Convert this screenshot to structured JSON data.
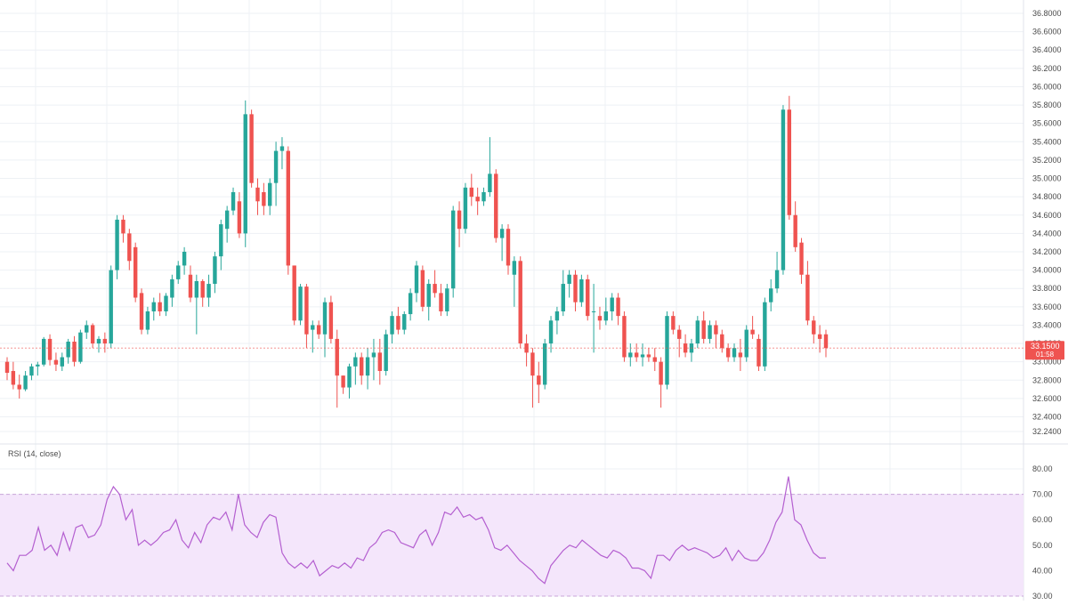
{
  "colors": {
    "up": "#26a69a",
    "down": "#ef5350",
    "grid": "#eef1f5",
    "axis_text": "#4a4a4a",
    "rsi_line": "#b45fd0",
    "rsi_band_fill": "#f4e6fb",
    "rsi_band_border": "#c9a6d9",
    "price_marker": "#ef5350"
  },
  "price_axis": {
    "ticks": [
      "36.8000",
      "36.6000",
      "36.4000",
      "36.2000",
      "36.0000",
      "35.8000",
      "35.6000",
      "35.4000",
      "35.2000",
      "35.0000",
      "34.8000",
      "34.6000",
      "34.4000",
      "34.2000",
      "34.0000",
      "33.8000",
      "33.6000",
      "33.4000",
      "33.2000",
      "33.0000",
      "32.8000",
      "32.6000",
      "32.4000",
      "32.2400"
    ]
  },
  "current_price": {
    "value": 33.15,
    "label": "33.1500",
    "countdown": "01:58"
  },
  "rsi": {
    "title": "RSI (14, close)",
    "ticks": [
      "80.00",
      "70.00",
      "60.00",
      "50.00",
      "40.00",
      "30.00"
    ],
    "overbought": 70,
    "oversold": 30
  },
  "chart_data": [
    {
      "type": "candlestick",
      "title": "",
      "ylim": [
        32.24,
        36.8
      ],
      "candles": [
        [
          33.0,
          33.05,
          32.8,
          32.88
        ],
        [
          32.9,
          33.0,
          32.7,
          32.75
        ],
        [
          32.75,
          32.86,
          32.6,
          32.7
        ],
        [
          32.7,
          32.9,
          32.68,
          32.85
        ],
        [
          32.85,
          32.98,
          32.8,
          32.95
        ],
        [
          32.95,
          33.0,
          32.85,
          32.97
        ],
        [
          32.97,
          33.27,
          32.95,
          33.25
        ],
        [
          33.25,
          33.3,
          32.96,
          33.02
        ],
        [
          33.02,
          33.1,
          32.9,
          32.97
        ],
        [
          32.95,
          33.1,
          32.9,
          33.05
        ],
        [
          33.05,
          33.25,
          32.98,
          33.22
        ],
        [
          33.22,
          33.28,
          32.95,
          33.0
        ],
        [
          33.0,
          33.35,
          32.98,
          33.32
        ],
        [
          33.32,
          33.45,
          33.25,
          33.4
        ],
        [
          33.4,
          33.42,
          33.15,
          33.2
        ],
        [
          33.2,
          33.28,
          33.1,
          33.25
        ],
        [
          33.25,
          33.32,
          33.1,
          33.2
        ],
        [
          33.2,
          34.05,
          33.15,
          34.0
        ],
        [
          34.0,
          34.6,
          33.9,
          34.55
        ],
        [
          34.55,
          34.6,
          34.3,
          34.4
        ],
        [
          34.4,
          34.45,
          34.0,
          34.1
        ],
        [
          34.25,
          34.3,
          33.65,
          33.7
        ],
        [
          33.75,
          33.8,
          33.3,
          33.35
        ],
        [
          33.35,
          33.6,
          33.3,
          33.55
        ],
        [
          33.55,
          33.7,
          33.45,
          33.65
        ],
        [
          33.65,
          33.75,
          33.5,
          33.55
        ],
        [
          33.55,
          33.75,
          33.5,
          33.72
        ],
        [
          33.7,
          33.95,
          33.6,
          33.9
        ],
        [
          33.9,
          34.1,
          33.85,
          34.05
        ],
        [
          34.05,
          34.25,
          33.95,
          34.2
        ],
        [
          33.95,
          34.05,
          33.65,
          33.7
        ],
        [
          33.7,
          33.95,
          33.3,
          33.88
        ],
        [
          33.88,
          33.9,
          33.6,
          33.7
        ],
        [
          33.7,
          33.95,
          33.6,
          33.85
        ],
        [
          33.85,
          34.2,
          33.75,
          34.15
        ],
        [
          34.15,
          34.55,
          34.0,
          34.5
        ],
        [
          34.45,
          34.7,
          34.3,
          34.65
        ],
        [
          34.65,
          34.9,
          34.6,
          34.85
        ],
        [
          34.75,
          34.85,
          34.35,
          34.4
        ],
        [
          34.4,
          35.85,
          34.25,
          35.7
        ],
        [
          35.7,
          35.75,
          34.9,
          34.95
        ],
        [
          34.9,
          35.0,
          34.6,
          34.75
        ],
        [
          34.85,
          34.95,
          34.6,
          34.7
        ],
        [
          34.7,
          35.0,
          34.6,
          34.95
        ],
        [
          34.95,
          35.4,
          34.7,
          35.3
        ],
        [
          35.3,
          35.45,
          35.1,
          35.35
        ],
        [
          35.3,
          35.35,
          33.95,
          34.05
        ],
        [
          34.05,
          34.05,
          33.4,
          33.45
        ],
        [
          33.45,
          33.85,
          33.4,
          33.82
        ],
        [
          33.82,
          33.85,
          33.15,
          33.3
        ],
        [
          33.35,
          33.45,
          33.1,
          33.4
        ],
        [
          33.4,
          33.45,
          33.25,
          33.3
        ],
        [
          33.3,
          33.7,
          33.05,
          33.65
        ],
        [
          33.65,
          33.72,
          33.2,
          33.25
        ],
        [
          33.25,
          33.35,
          32.5,
          32.85
        ],
        [
          32.85,
          32.85,
          32.65,
          32.72
        ],
        [
          32.72,
          32.98,
          32.6,
          32.95
        ],
        [
          32.95,
          33.1,
          32.75,
          33.05
        ],
        [
          33.05,
          33.1,
          32.75,
          32.85
        ],
        [
          32.85,
          33.15,
          32.7,
          33.05
        ],
        [
          33.05,
          33.25,
          32.8,
          33.1
        ],
        [
          33.1,
          33.25,
          32.75,
          32.9
        ],
        [
          32.9,
          33.35,
          32.85,
          33.3
        ],
        [
          33.3,
          33.55,
          33.2,
          33.5
        ],
        [
          33.5,
          33.6,
          33.3,
          33.35
        ],
        [
          33.35,
          33.55,
          33.3,
          33.52
        ],
        [
          33.52,
          33.8,
          33.45,
          33.75
        ],
        [
          33.75,
          34.1,
          33.65,
          34.05
        ],
        [
          34.0,
          34.05,
          33.55,
          33.6
        ],
        [
          33.6,
          33.9,
          33.45,
          33.85
        ],
        [
          33.85,
          34.0,
          33.7,
          33.75
        ],
        [
          33.75,
          33.85,
          33.5,
          33.55
        ],
        [
          33.55,
          33.85,
          33.5,
          33.8
        ],
        [
          33.8,
          34.7,
          33.7,
          34.65
        ],
        [
          34.65,
          34.75,
          34.25,
          34.45
        ],
        [
          34.45,
          34.95,
          34.4,
          34.9
        ],
        [
          34.9,
          35.05,
          34.7,
          34.8
        ],
        [
          34.8,
          34.9,
          34.6,
          34.75
        ],
        [
          34.75,
          34.9,
          34.7,
          34.85
        ],
        [
          34.85,
          35.45,
          34.8,
          35.05
        ],
        [
          35.05,
          35.1,
          34.3,
          34.35
        ],
        [
          34.35,
          34.5,
          34.1,
          34.45
        ],
        [
          34.45,
          34.5,
          33.95,
          34.05
        ],
        [
          33.95,
          34.15,
          33.6,
          34.1
        ],
        [
          34.1,
          34.15,
          33.15,
          33.2
        ],
        [
          33.2,
          33.3,
          32.95,
          33.1
        ],
        [
          33.1,
          33.15,
          32.5,
          32.85
        ],
        [
          32.85,
          33.0,
          32.55,
          32.75
        ],
        [
          32.75,
          33.25,
          32.7,
          33.2
        ],
        [
          33.2,
          33.5,
          33.1,
          33.45
        ],
        [
          33.45,
          33.6,
          33.3,
          33.55
        ],
        [
          33.55,
          34.0,
          33.5,
          33.85
        ],
        [
          33.85,
          34.0,
          33.7,
          33.95
        ],
        [
          33.95,
          34.0,
          33.55,
          33.65
        ],
        [
          33.65,
          33.95,
          33.6,
          33.9
        ],
        [
          33.9,
          33.95,
          33.45,
          33.5
        ],
        [
          33.55,
          33.85,
          33.1,
          33.55
        ],
        [
          33.5,
          33.6,
          33.35,
          33.45
        ],
        [
          33.45,
          33.7,
          33.4,
          33.55
        ],
        [
          33.55,
          33.75,
          33.45,
          33.7
        ],
        [
          33.7,
          33.75,
          33.4,
          33.5
        ],
        [
          33.5,
          33.55,
          33.0,
          33.05
        ],
        [
          33.05,
          33.2,
          32.95,
          33.1
        ],
        [
          33.1,
          33.2,
          33.0,
          33.05
        ],
        [
          33.05,
          33.2,
          32.95,
          33.08
        ],
        [
          33.08,
          33.15,
          33.0,
          33.05
        ],
        [
          33.05,
          33.15,
          32.9,
          33.0
        ],
        [
          33.0,
          33.05,
          32.5,
          32.75
        ],
        [
          32.75,
          33.55,
          32.7,
          33.5
        ],
        [
          33.5,
          33.55,
          33.3,
          33.35
        ],
        [
          33.35,
          33.4,
          33.05,
          33.25
        ],
        [
          33.2,
          33.3,
          33.05,
          33.1
        ],
        [
          33.1,
          33.25,
          33.0,
          33.2
        ],
        [
          33.2,
          33.5,
          33.15,
          33.45
        ],
        [
          33.45,
          33.55,
          33.2,
          33.25
        ],
        [
          33.25,
          33.45,
          33.2,
          33.4
        ],
        [
          33.4,
          33.45,
          33.15,
          33.3
        ],
        [
          33.3,
          33.35,
          33.1,
          33.15
        ],
        [
          33.15,
          33.2,
          33.0,
          33.05
        ],
        [
          33.05,
          33.2,
          33.0,
          33.15
        ],
        [
          33.1,
          33.25,
          32.9,
          33.05
        ],
        [
          33.05,
          33.4,
          33.0,
          33.35
        ],
        [
          33.35,
          33.5,
          33.25,
          33.3
        ],
        [
          33.25,
          33.3,
          32.9,
          32.95
        ],
        [
          32.95,
          33.7,
          32.9,
          33.65
        ],
        [
          33.65,
          33.9,
          33.55,
          33.8
        ],
        [
          33.8,
          34.2,
          33.75,
          34.0
        ],
        [
          34.0,
          35.8,
          33.95,
          35.75
        ],
        [
          35.75,
          35.9,
          34.55,
          34.6
        ],
        [
          34.6,
          34.75,
          34.2,
          34.25
        ],
        [
          34.3,
          34.35,
          33.85,
          33.95
        ],
        [
          33.95,
          34.1,
          33.4,
          33.45
        ],
        [
          33.45,
          33.5,
          33.2,
          33.3
        ],
        [
          33.3,
          33.4,
          33.1,
          33.25
        ],
        [
          33.3,
          33.35,
          33.05,
          33.15
        ]
      ]
    },
    {
      "type": "line",
      "title": "RSI (14, close)",
      "ylim": [
        30,
        80
      ],
      "values": [
        43,
        40,
        46,
        46,
        48,
        57,
        48,
        50,
        46,
        55,
        48,
        57,
        58,
        53,
        54,
        58,
        68,
        73,
        70,
        60,
        64,
        50,
        52,
        50,
        52,
        55,
        56,
        60,
        52,
        49,
        55,
        51,
        58,
        61,
        60,
        63,
        56,
        70,
        58,
        55,
        53,
        59,
        62,
        61,
        47,
        43,
        41,
        43,
        41,
        44,
        38,
        40,
        42,
        41,
        43,
        41,
        45,
        44,
        49,
        51,
        55,
        56,
        55,
        51,
        50,
        49,
        54,
        56,
        50,
        55,
        63,
        62,
        65,
        61,
        62,
        60,
        61,
        56,
        49,
        48,
        50,
        47,
        44,
        42,
        40,
        37,
        35,
        42,
        45,
        48,
        50,
        49,
        52,
        50,
        48,
        46,
        45,
        48,
        47,
        45,
        41,
        41,
        40,
        37,
        46,
        46,
        44,
        48,
        50,
        48,
        49,
        48,
        47,
        45,
        46,
        49,
        44,
        48,
        45,
        44,
        44,
        47,
        52,
        59,
        63,
        77,
        60,
        58,
        52,
        47,
        45,
        45
      ]
    }
  ]
}
